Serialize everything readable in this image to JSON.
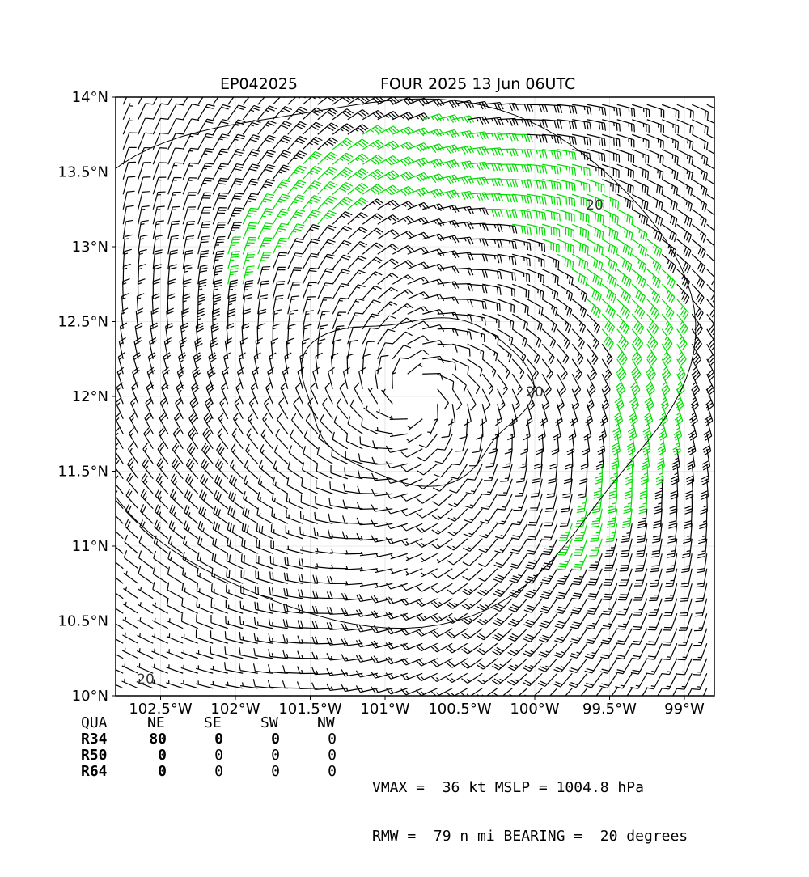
{
  "title_left": "EP042025",
  "title_right": "FOUR 2025 13 Jun 06UTC",
  "colors": {
    "frame": "#000000",
    "barb_below_34": "#000000",
    "barb_34_to_50": "#00dd00",
    "barb_50_to_64": "#ffa500",
    "contour": "#000000",
    "grid": "#e0e0e0"
  },
  "chart_data": {
    "type": "wind-barb-map",
    "x_ticks": [
      {
        "value": -102.5,
        "label": "102.5°W"
      },
      {
        "value": -102.0,
        "label": "102°W"
      },
      {
        "value": -101.5,
        "label": "101.5°W"
      },
      {
        "value": -101.0,
        "label": "101°W"
      },
      {
        "value": -100.5,
        "label": "100.5°W"
      },
      {
        "value": -100.0,
        "label": "100°W"
      },
      {
        "value": -99.5,
        "label": "99.5°W"
      },
      {
        "value": -99.0,
        "label": "99°W"
      }
    ],
    "y_ticks": [
      {
        "value": 10.0,
        "label": "10°N"
      },
      {
        "value": 10.5,
        "label": "10.5°N"
      },
      {
        "value": 11.0,
        "label": "11°N"
      },
      {
        "value": 11.5,
        "label": "11.5°N"
      },
      {
        "value": 12.0,
        "label": "12°N"
      },
      {
        "value": 12.5,
        "label": "12.5°N"
      },
      {
        "value": 13.0,
        "label": "13°N"
      },
      {
        "value": 13.5,
        "label": "13.5°N"
      },
      {
        "value": 14.0,
        "label": "14°N"
      }
    ],
    "xlim": [
      -102.8,
      -98.8
    ],
    "ylim": [
      10.0,
      14.0
    ],
    "grid": true,
    "storm_center": {
      "lon": -100.8,
      "lat": 12.0
    },
    "barb_spacing_deg": 0.1,
    "contour_labels": [
      {
        "text": "20",
        "lon": -99.6,
        "lat": 13.25
      },
      {
        "text": "20",
        "lon": -100.0,
        "lat": 12.0
      },
      {
        "text": "20",
        "lon": -102.6,
        "lat": 10.08
      }
    ]
  },
  "table": {
    "header": [
      "QUA",
      "NE",
      "SE",
      "SW",
      "NW"
    ],
    "rows": [
      [
        "R34",
        "80",
        "0",
        "0",
        "0"
      ],
      [
        "R50",
        "0",
        "0",
        "0",
        "0"
      ],
      [
        "R64",
        "0",
        "0",
        "0",
        "0"
      ]
    ]
  },
  "summary": {
    "line1": "VMAX =  36 kt MSLP = 1004.8 hPa",
    "line2": "RMW =  79 n mi BEARING =  20 degrees"
  }
}
